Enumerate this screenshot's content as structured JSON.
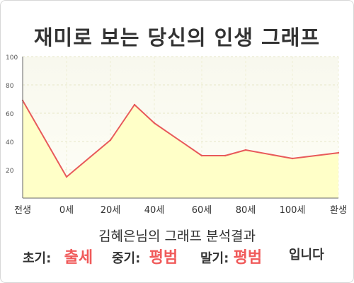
{
  "title": "재미로 보는 당신의 인생 그래프",
  "chart_data": {
    "type": "area",
    "categories": [
      "전생",
      "0세",
      "20세",
      "40세",
      "60세",
      "80세",
      "100세",
      "환생"
    ],
    "series": [
      {
        "points": [
          {
            "x": "전생",
            "y": 69
          },
          {
            "x": "0세",
            "y": 15
          },
          {
            "x": "20세",
            "y": 41
          },
          {
            "x": "30세",
            "y": 66
          },
          {
            "x": "40세",
            "y": 53
          },
          {
            "x": "60세",
            "y": 30
          },
          {
            "x": "70세",
            "y": 30
          },
          {
            "x": "80세",
            "y": 34
          },
          {
            "x": "100세",
            "y": 28
          },
          {
            "x": "환생",
            "y": 32
          }
        ]
      }
    ],
    "y_ticks": [
      100,
      80,
      60,
      40,
      20
    ],
    "ylim": [
      0,
      100
    ],
    "grid": true,
    "legend": "none",
    "line_color": "#e85a5a",
    "fill_color": "#ffffc8"
  },
  "result": {
    "heading": "김혜은님의 그래프 분석결과",
    "early_label": "초기:",
    "early_value": "출세",
    "middle_label": "중기:",
    "middle_value": "평범",
    "late_label": "말기:",
    "late_value": "평범",
    "suffix": "입니다"
  }
}
